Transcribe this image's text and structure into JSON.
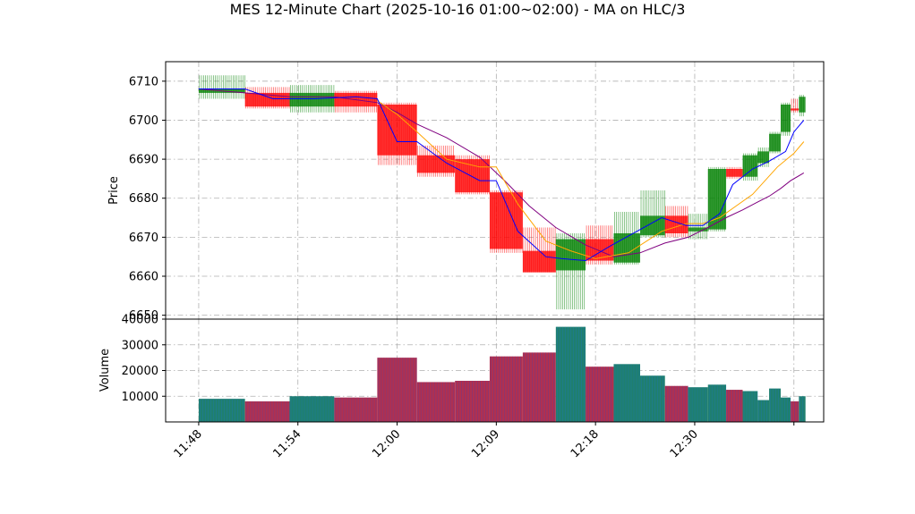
{
  "chart_data": {
    "type": "ohlc_bar_with_volume",
    "title": "MES 12-Minute Chart (2025-10-16 01:00~02:00) - MA on HLC/3",
    "price_panel": {
      "ylabel": "Price",
      "ylim": [
        6649,
        6715
      ],
      "yticks": [
        6650,
        6660,
        6670,
        6680,
        6690,
        6700,
        6710
      ],
      "grid": true
    },
    "volume_panel": {
      "ylabel": "Volume",
      "ylim": [
        0,
        40000
      ],
      "yticks": [
        10000,
        20000,
        30000,
        40000
      ],
      "grid": true
    },
    "x_tick_labels": [
      "11:48",
      "11:54",
      "12:00",
      "12:09",
      "12:18",
      "12:30",
      ""
    ],
    "x_tick_positions": [
      0,
      6,
      12,
      18,
      24,
      30,
      36
    ],
    "xlim": [
      -2,
      37.8
    ],
    "bars": [
      {
        "x0": 0,
        "x1": 2.8,
        "open": 6707,
        "high": 6711.5,
        "low": 6705.5,
        "close": 6708,
        "volume": 9000
      },
      {
        "x0": 2.8,
        "x1": 5.5,
        "open": 6707,
        "high": 6708.5,
        "low": 6703,
        "close": 6703.5,
        "volume": 8000
      },
      {
        "x0": 5.5,
        "x1": 8.2,
        "open": 6703.5,
        "high": 6709,
        "low": 6702,
        "close": 6707,
        "volume": 10000
      },
      {
        "x0": 8.2,
        "x1": 10.8,
        "open": 6707,
        "high": 6707.5,
        "low": 6702,
        "close": 6703.5,
        "volume": 9500
      },
      {
        "x0": 10.8,
        "x1": 13.2,
        "open": 6704,
        "high": 6704.5,
        "low": 6688.5,
        "close": 6691,
        "volume": 25000
      },
      {
        "x0": 13.2,
        "x1": 15.5,
        "open": 6691,
        "high": 6693.5,
        "low": 6685.5,
        "close": 6686.5,
        "volume": 15500
      },
      {
        "x0": 15.5,
        "x1": 17.6,
        "open": 6690,
        "high": 6691,
        "low": 6681,
        "close": 6681.5,
        "volume": 16000
      },
      {
        "x0": 17.6,
        "x1": 19.6,
        "open": 6681.5,
        "high": 6682,
        "low": 6666,
        "close": 6667,
        "volume": 25500
      },
      {
        "x0": 19.6,
        "x1": 21.6,
        "open": 6666.5,
        "high": 6672.5,
        "low": 6661,
        "close": 6661,
        "volume": 27000
      },
      {
        "x0": 21.6,
        "x1": 23.4,
        "open": 6661.5,
        "high": 6671,
        "low": 6651.5,
        "close": 6669.5,
        "volume": 37000
      },
      {
        "x0": 23.4,
        "x1": 25.1,
        "open": 6669.5,
        "high": 6673,
        "low": 6663,
        "close": 6664,
        "volume": 21500
      },
      {
        "x0": 25.1,
        "x1": 26.7,
        "open": 6663.5,
        "high": 6676.5,
        "low": 6663,
        "close": 6671,
        "volume": 22500
      },
      {
        "x0": 26.7,
        "x1": 28.2,
        "open": 6670.5,
        "high": 6682,
        "low": 6670,
        "close": 6675.5,
        "volume": 18000
      },
      {
        "x0": 28.2,
        "x1": 29.6,
        "open": 6675.5,
        "high": 6678,
        "low": 6670,
        "close": 6671,
        "volume": 14000
      },
      {
        "x0": 29.6,
        "x1": 30.8,
        "open": 6671.5,
        "high": 6676,
        "low": 6669.5,
        "close": 6672.5,
        "volume": 13500
      },
      {
        "x0": 30.8,
        "x1": 31.9,
        "open": 6672,
        "high": 6688,
        "low": 6671.5,
        "close": 6687.5,
        "volume": 14500
      },
      {
        "x0": 31.9,
        "x1": 32.9,
        "open": 6687.5,
        "high": 6688,
        "low": 6685,
        "close": 6685.5,
        "volume": 12500
      },
      {
        "x0": 32.9,
        "x1": 33.8,
        "open": 6685.5,
        "high": 6691.5,
        "low": 6684.5,
        "close": 6691,
        "volume": 12000
      },
      {
        "x0": 33.8,
        "x1": 34.5,
        "open": 6689,
        "high": 6693,
        "low": 6688,
        "close": 6692,
        "volume": 8500
      },
      {
        "x0": 34.5,
        "x1": 35.2,
        "open": 6692,
        "high": 6697,
        "low": 6691.5,
        "close": 6696.5,
        "volume": 13000
      },
      {
        "x0": 35.2,
        "x1": 35.8,
        "open": 6697,
        "high": 6704.5,
        "low": 6696,
        "close": 6704,
        "volume": 9500
      },
      {
        "x0": 35.8,
        "x1": 36.3,
        "open": 6703,
        "high": 6705.5,
        "low": 6702,
        "close": 6702.5,
        "volume": 8000
      },
      {
        "x0": 36.3,
        "x1": 36.7,
        "open": 6702,
        "high": 6706.5,
        "low": 6701,
        "close": 6706,
        "volume": 10000
      }
    ],
    "ma_fast": {
      "color": "#0000ff",
      "x": [
        0,
        2.8,
        4.5,
        7,
        9.5,
        10.8,
        12,
        13.2,
        15,
        17,
        18,
        19.3,
        21,
        22,
        23.4,
        25,
        26.5,
        28,
        29.5,
        30.5,
        31.5,
        32.3,
        33.5,
        34.5,
        35.5,
        36,
        36.6
      ],
      "y": [
        6708,
        6708,
        6705.5,
        6705.5,
        6706,
        6705.5,
        6694.5,
        6694.5,
        6689,
        6684.5,
        6684.5,
        6671.5,
        6665,
        6664.5,
        6664,
        6668,
        6671.5,
        6675,
        6673,
        6673,
        6676,
        6683.5,
        6687.5,
        6689.5,
        6692,
        6697,
        6700
      ]
    },
    "ma_mid": {
      "color": "#ffa500",
      "x": [
        10.8,
        12,
        13.2,
        15,
        17,
        18,
        19.3,
        21,
        22.5,
        24,
        26,
        28,
        29.5,
        30.5,
        31.5,
        32.5,
        33.5,
        35,
        36,
        36.6
      ],
      "y": [
        6705,
        6701.5,
        6697,
        6690,
        6688,
        6688,
        6678.5,
        6669,
        6666.5,
        6664.5,
        6666,
        6671.5,
        6673.5,
        6673.5,
        6675,
        6678,
        6681,
        6688,
        6691.5,
        6694.5
      ]
    },
    "ma_slow": {
      "color": "#800080",
      "x": [
        0,
        2.8,
        5.5,
        8.2,
        10.8,
        12,
        13.2,
        15,
        17,
        18.5,
        20,
        21.6,
        23.4,
        25.1,
        26.7,
        28.2,
        29.6,
        30.8,
        31.9,
        32.9,
        33.8,
        34.5,
        35.2,
        35.8,
        36.6
      ],
      "y": [
        6708,
        6707,
        6706,
        6706,
        6704.5,
        6702,
        6699,
        6695.5,
        6690.5,
        6684.5,
        6678,
        6672.5,
        6668,
        6665,
        6666,
        6668.5,
        6670,
        6672.5,
        6675,
        6677,
        6679,
        6680.5,
        6682.5,
        6684.5,
        6686.5
      ]
    },
    "up_color": "#008000",
    "down_color": "#ff0000",
    "grid": true,
    "legend": "none"
  }
}
